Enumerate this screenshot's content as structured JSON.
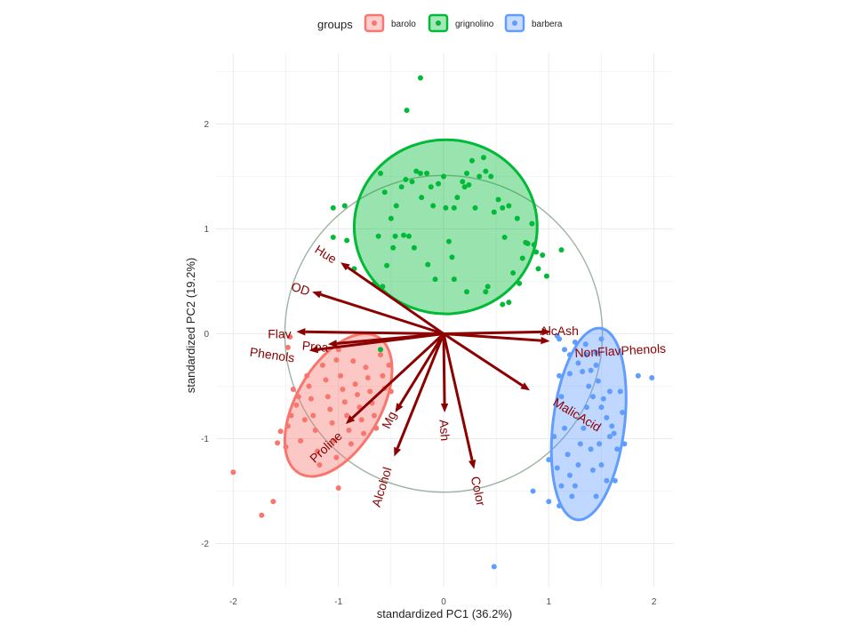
{
  "chart_data": {
    "type": "scatter",
    "xlabel": "standardized PC1 (36.2%)",
    "ylabel": "standardized PC2 (19.2%)",
    "xlim": [
      -2.1,
      2.15
    ],
    "ylim": [
      -2.43,
      2.5
    ],
    "x_ticks": [
      -2,
      -1,
      0,
      1,
      2
    ],
    "y_ticks": [
      -2,
      -1,
      0,
      1,
      2
    ],
    "grid": true,
    "legend": {
      "title": "groups",
      "position": "top",
      "entries": [
        {
          "key": "barolo",
          "label": "barolo",
          "color": "#F8766D"
        },
        {
          "key": "grignolino",
          "label": "grignolino",
          "color": "#00BA38"
        },
        {
          "key": "barbera",
          "label": "barbera",
          "color": "#619CFF"
        }
      ]
    },
    "correlation_circle": {
      "center": [
        0,
        0
      ],
      "radius": 1.51,
      "color": "#9fb3a3"
    },
    "arrow_color": "#8B0000",
    "loadings": [
      {
        "label": "Hue",
        "x": -0.98,
        "y": 0.68,
        "lx": -1.12,
        "ly": 0.76,
        "angle": 32
      },
      {
        "label": "OD",
        "x": -1.25,
        "y": 0.4,
        "lx": -1.36,
        "ly": 0.43,
        "angle": 18
      },
      {
        "label": "Flav",
        "x": -1.4,
        "y": 0.02,
        "lx": -1.56,
        "ly": 0.0,
        "angle": 0
      },
      {
        "label": "Phenols",
        "x": -1.28,
        "y": -0.16,
        "lx": -1.63,
        "ly": -0.2,
        "angle": 8
      },
      {
        "label": "Proa",
        "x": -1.1,
        "y": -0.1,
        "lx": -1.22,
        "ly": -0.12,
        "angle": 5
      },
      {
        "label": "AlcAsh",
        "x": 1.02,
        "y": 0.02,
        "lx": 1.1,
        "ly": 0.03,
        "angle": 0
      },
      {
        "label": "NonFlavPhenols",
        "x": 1.01,
        "y": -0.07,
        "lx": 1.68,
        "ly": -0.16,
        "angle": -3
      },
      {
        "label": "MalicAcid",
        "x": 0.82,
        "y": -0.54,
        "lx": 1.27,
        "ly": -0.77,
        "angle": 31
      },
      {
        "label": "Color",
        "x": 0.29,
        "y": -1.29,
        "lx": 0.33,
        "ly": -1.5,
        "angle": 78
      },
      {
        "label": "Ash",
        "x": 0.01,
        "y": -0.75,
        "lx": 0.01,
        "ly": -0.92,
        "angle": 86
      },
      {
        "label": "Mg",
        "x": -0.46,
        "y": -0.75,
        "lx": -0.52,
        "ly": -0.82,
        "angle": -64
      },
      {
        "label": "Alcohol",
        "x": -0.47,
        "y": -1.17,
        "lx": -0.59,
        "ly": -1.46,
        "angle": -73
      },
      {
        "label": "Proline",
        "x": -0.93,
        "y": -0.86,
        "lx": -1.12,
        "ly": -1.08,
        "angle": -43
      }
    ],
    "ellipses": [
      {
        "group": "barolo",
        "cx": -1.0,
        "cy": -0.68,
        "rx": 0.4,
        "ry": 0.75,
        "angle": 30
      },
      {
        "group": "grignolino",
        "cx": 0.02,
        "cy": 1.02,
        "rx": 0.87,
        "ry": 0.83,
        "angle": 0
      },
      {
        "group": "barbera",
        "cx": 1.38,
        "cy": -0.86,
        "rx": 0.34,
        "ry": 0.92,
        "angle": 7
      }
    ],
    "series": [
      {
        "name": "barolo",
        "points": [
          [
            -2.0,
            -1.32
          ],
          [
            -1.73,
            -1.73
          ],
          [
            -1.62,
            -1.6
          ],
          [
            -1.58,
            -1.04
          ],
          [
            -1.55,
            -0.93
          ],
          [
            -1.5,
            -1.08
          ],
          [
            -1.48,
            -0.88
          ],
          [
            -1.45,
            -0.78
          ],
          [
            -1.4,
            -0.68
          ],
          [
            -1.43,
            -0.53
          ],
          [
            -1.46,
            -0.03
          ],
          [
            -1.48,
            -0.13
          ],
          [
            -1.36,
            -1.02
          ],
          [
            -1.32,
            -0.82
          ],
          [
            -1.3,
            -0.4
          ],
          [
            -1.28,
            -0.5
          ],
          [
            -1.26,
            -0.62
          ],
          [
            -1.24,
            -0.78
          ],
          [
            -1.22,
            -0.92
          ],
          [
            -1.2,
            -1.12
          ],
          [
            -1.18,
            -1.25
          ],
          [
            -1.15,
            -0.3
          ],
          [
            -1.12,
            -0.44
          ],
          [
            -1.1,
            -0.6
          ],
          [
            -1.08,
            -0.72
          ],
          [
            -1.06,
            -0.85
          ],
          [
            -1.04,
            -1.02
          ],
          [
            -1.02,
            -1.18
          ],
          [
            -1.0,
            -1.47
          ],
          [
            -0.98,
            -0.4
          ],
          [
            -0.96,
            -0.53
          ],
          [
            -0.94,
            -0.65
          ],
          [
            -0.92,
            -0.78
          ],
          [
            -0.9,
            -0.92
          ],
          [
            -0.88,
            -1.05
          ],
          [
            -0.86,
            -0.26
          ],
          [
            -0.84,
            -0.48
          ],
          [
            -0.82,
            -0.58
          ],
          [
            -0.8,
            -0.7
          ],
          [
            -0.78,
            -0.82
          ],
          [
            -0.76,
            -0.95
          ],
          [
            -0.74,
            -0.32
          ],
          [
            -0.72,
            -0.42
          ],
          [
            -0.7,
            -0.55
          ],
          [
            -0.68,
            -0.66
          ],
          [
            -0.66,
            -0.78
          ],
          [
            -0.64,
            -0.9
          ],
          [
            -0.6,
            -0.2
          ],
          [
            -0.58,
            -0.4
          ],
          [
            -0.56,
            -0.52
          ],
          [
            -0.52,
            -0.3
          ],
          [
            -0.5,
            -0.55
          ],
          [
            -1.0,
            -0.15
          ],
          [
            -1.02,
            -0.25
          ],
          [
            -1.38,
            -0.6
          ]
        ]
      },
      {
        "name": "grignolino",
        "points": [
          [
            -0.22,
            2.44
          ],
          [
            -0.35,
            2.13
          ],
          [
            -0.22,
            1.53
          ],
          [
            -1.05,
            1.2
          ],
          [
            -0.94,
            1.22
          ],
          [
            -1.05,
            0.92
          ],
          [
            -0.92,
            0.89
          ],
          [
            -0.85,
            0.62
          ],
          [
            -0.66,
            0.48
          ],
          [
            -0.58,
            0.45
          ],
          [
            -0.54,
            0.65
          ],
          [
            -0.48,
            0.82
          ],
          [
            -0.62,
            0.93
          ],
          [
            -0.46,
            0.93
          ],
          [
            -0.38,
            0.94
          ],
          [
            -0.33,
            0.93
          ],
          [
            -0.6,
            1.53
          ],
          [
            -0.56,
            1.35
          ],
          [
            -0.5,
            1.1
          ],
          [
            -0.45,
            1.22
          ],
          [
            -0.4,
            1.4
          ],
          [
            -0.36,
            1.47
          ],
          [
            -0.3,
            1.45
          ],
          [
            -0.26,
            1.55
          ],
          [
            -0.21,
            1.3
          ],
          [
            -0.16,
            1.53
          ],
          [
            -0.12,
            1.4
          ],
          [
            -0.1,
            1.22
          ],
          [
            -0.08,
            0.52
          ],
          [
            -0.05,
            1.43
          ],
          [
            0.0,
            1.5
          ],
          [
            0.02,
            1.2
          ],
          [
            0.05,
            0.88
          ],
          [
            0.08,
            0.73
          ],
          [
            0.1,
            1.2
          ],
          [
            0.13,
            1.3
          ],
          [
            0.18,
            1.45
          ],
          [
            0.2,
            1.4
          ],
          [
            0.22,
            1.53
          ],
          [
            0.24,
            1.42
          ],
          [
            0.27,
            1.65
          ],
          [
            0.3,
            1.2
          ],
          [
            0.34,
            1.5
          ],
          [
            0.38,
            1.68
          ],
          [
            0.4,
            1.55
          ],
          [
            0.45,
            1.5
          ],
          [
            0.48,
            1.16
          ],
          [
            0.52,
            1.28
          ],
          [
            0.56,
            1.2
          ],
          [
            0.58,
            0.92
          ],
          [
            0.62,
            1.22
          ],
          [
            0.66,
            0.58
          ],
          [
            0.7,
            1.1
          ],
          [
            0.72,
            0.48
          ],
          [
            0.75,
            0.72
          ],
          [
            0.78,
            0.87
          ],
          [
            0.8,
            0.86
          ],
          [
            0.84,
            1.05
          ],
          [
            0.86,
            0.85
          ],
          [
            0.88,
            0.78
          ],
          [
            0.9,
            0.62
          ],
          [
            0.94,
            0.75
          ],
          [
            0.98,
            0.55
          ],
          [
            0.1,
            0.52
          ],
          [
            0.22,
            0.4
          ],
          [
            0.4,
            0.4
          ],
          [
            0.42,
            0.45
          ],
          [
            0.62,
            0.3
          ],
          [
            -0.15,
            0.66
          ],
          [
            -0.28,
            0.82
          ],
          [
            0.56,
            0.28
          ],
          [
            1.12,
            0.8
          ],
          [
            -0.6,
            -0.15
          ]
        ]
      },
      {
        "name": "barbera",
        "points": [
          [
            0.48,
            -2.22
          ],
          [
            1.08,
            -0.02
          ],
          [
            1.1,
            -0.05
          ],
          [
            1.15,
            -0.15
          ],
          [
            1.2,
            -0.2
          ],
          [
            1.25,
            -0.08
          ],
          [
            1.28,
            -0.28
          ],
          [
            1.32,
            -0.36
          ],
          [
            1.36,
            -0.2
          ],
          [
            1.38,
            -0.5
          ],
          [
            1.4,
            -0.35
          ],
          [
            1.42,
            -0.6
          ],
          [
            1.45,
            -0.3
          ],
          [
            1.47,
            -0.45
          ],
          [
            1.5,
            -0.7
          ],
          [
            1.52,
            -0.62
          ],
          [
            1.55,
            -0.8
          ],
          [
            1.58,
            -0.55
          ],
          [
            1.6,
            -0.88
          ],
          [
            1.62,
            -0.95
          ],
          [
            1.65,
            -1.1
          ],
          [
            1.68,
            -0.55
          ],
          [
            1.7,
            -0.75
          ],
          [
            1.72,
            -1.05
          ],
          [
            1.85,
            -0.4
          ],
          [
            1.98,
            -0.42
          ],
          [
            1.1,
            -0.4
          ],
          [
            1.12,
            -0.6
          ],
          [
            1.15,
            -0.9
          ],
          [
            1.18,
            -1.15
          ],
          [
            1.2,
            -1.35
          ],
          [
            1.22,
            -1.55
          ],
          [
            1.25,
            -1.45
          ],
          [
            1.28,
            -1.25
          ],
          [
            1.3,
            -1.05
          ],
          [
            1.33,
            -0.9
          ],
          [
            1.36,
            -0.7
          ],
          [
            1.4,
            -1.1
          ],
          [
            1.42,
            -1.3
          ],
          [
            1.45,
            -1.55
          ],
          [
            1.48,
            -1.05
          ],
          [
            1.5,
            -1.25
          ],
          [
            1.55,
            -1.4
          ],
          [
            1.58,
            -0.98
          ],
          [
            1.63,
            -1.4
          ],
          [
            1.05,
            -0.98
          ],
          [
            1.08,
            -1.28
          ],
          [
            1.12,
            -1.45
          ],
          [
            1.0,
            -1.6
          ],
          [
            0.85,
            -1.5
          ],
          [
            1.1,
            -1.64
          ],
          [
            1.2,
            -0.38
          ],
          [
            1.35,
            -0.1
          ],
          [
            1.45,
            -0.18
          ],
          [
            1.5,
            -0.05
          ],
          [
            1.0,
            -1.2
          ]
        ]
      }
    ]
  }
}
